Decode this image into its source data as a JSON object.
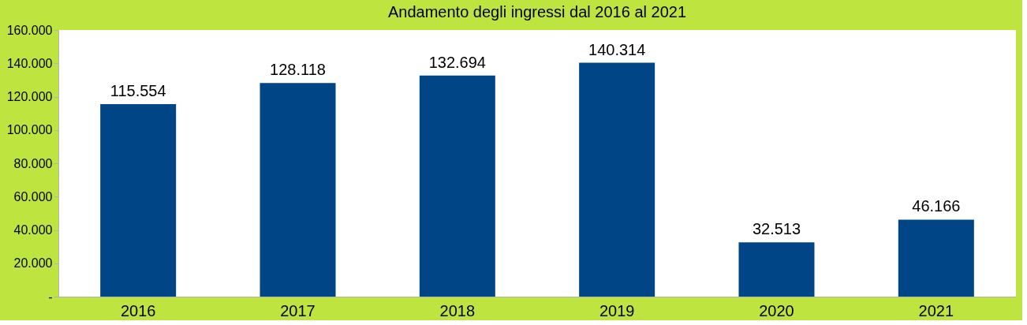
{
  "chart_data": {
    "type": "bar",
    "title": "Andamento degli ingressi dal 2016 al 2021",
    "categories": [
      "2016",
      "2017",
      "2018",
      "2019",
      "2020",
      "2021"
    ],
    "values": [
      115554,
      128118,
      132694,
      140314,
      32513,
      46166
    ],
    "value_labels": [
      "115.554",
      "128.118",
      "132.694",
      "140.314",
      "32.513",
      "46.166"
    ],
    "color": "#004586",
    "ylim": [
      0,
      160000
    ],
    "yticks": [
      {
        "value": 0,
        "label": "-"
      },
      {
        "value": 20000,
        "label": "20.000"
      },
      {
        "value": 40000,
        "label": "40.000"
      },
      {
        "value": 60000,
        "label": "60.000"
      },
      {
        "value": 80000,
        "label": "80.000"
      },
      {
        "value": 100000,
        "label": "100.000"
      },
      {
        "value": 120000,
        "label": "120.000"
      },
      {
        "value": 140000,
        "label": "140.000"
      },
      {
        "value": 160000,
        "label": "160.000"
      }
    ],
    "grid": false
  }
}
